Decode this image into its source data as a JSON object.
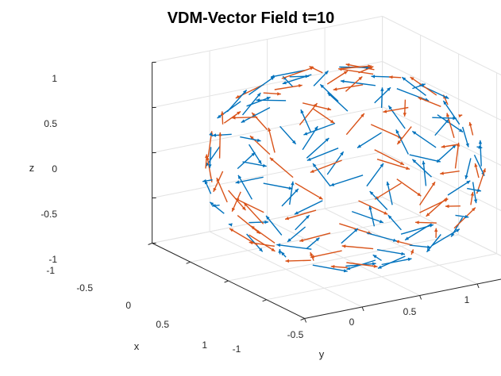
{
  "chart_data": {
    "type": "quiver3d",
    "title": "VDM-Vector Field  t=10",
    "xlabel": "x",
    "ylabel": "y",
    "zlabel": "z",
    "xlim": [
      -1,
      1
    ],
    "ylim": [
      -1,
      1
    ],
    "zlim": [
      -1,
      1
    ],
    "x_ticks": [
      "-1",
      "-0.5",
      "0",
      "0.5",
      "1"
    ],
    "y_ticks": [
      "-1",
      "-0.5",
      "0",
      "0.5",
      "1"
    ],
    "z_ticks": [
      "1",
      "0.5",
      "0",
      "-0.5",
      "-1"
    ],
    "grid": true,
    "surface": "unit sphere",
    "series": [
      {
        "color": "#0072BD"
      },
      {
        "color": "#D95319"
      }
    ]
  }
}
